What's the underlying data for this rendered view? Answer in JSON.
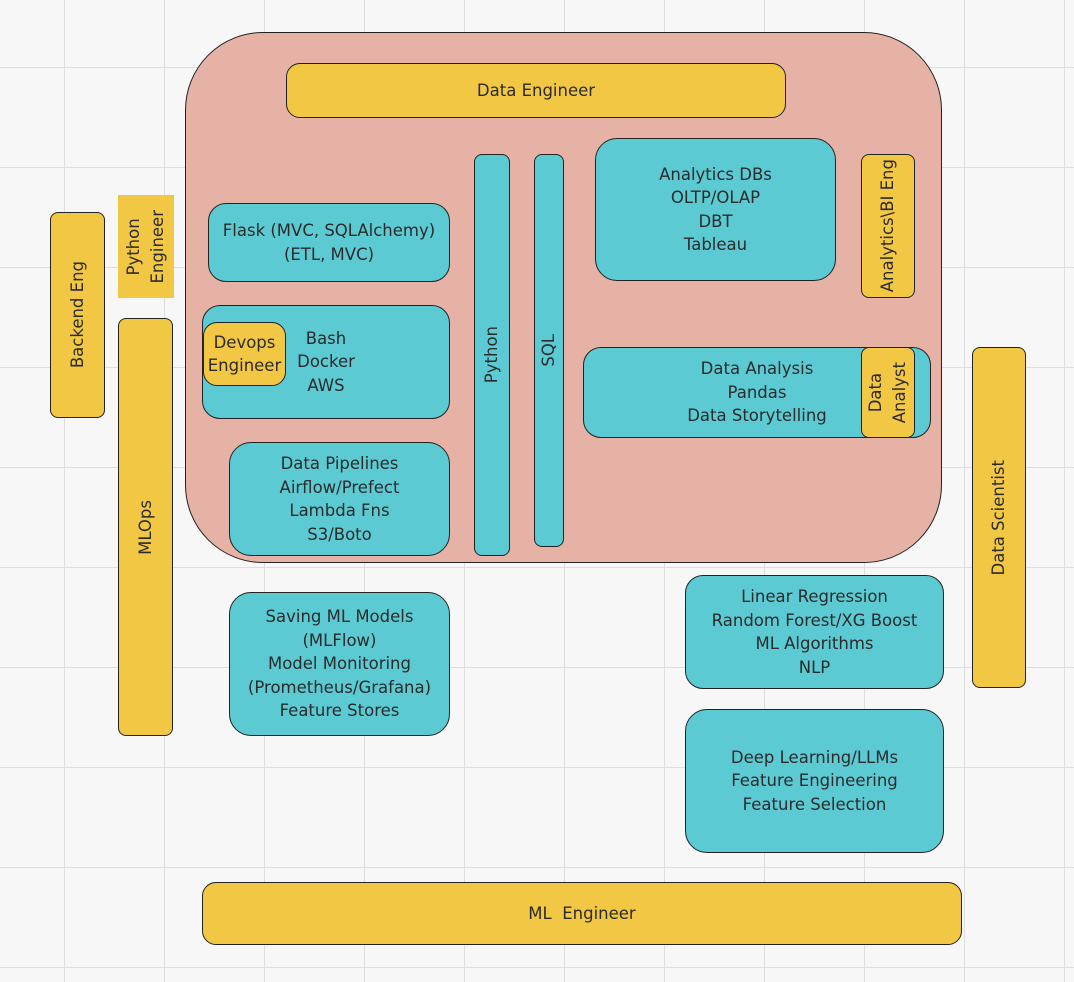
{
  "diagram": {
    "data_engineer": "Data Engineer",
    "python_engineer": [
      "Python",
      "Engineer"
    ],
    "backend_eng": "Backend Eng",
    "mlops": "MLOps",
    "flask": [
      "Flask (MVC, SQLAlchemy)",
      "(ETL, MVC)"
    ],
    "devops_engineer": [
      "Devops",
      "Engineer"
    ],
    "bash_docker_aws": [
      "Bash",
      "Docker",
      "AWS"
    ],
    "data_pipelines": [
      "Data Pipelines",
      "Airflow/Prefect",
      "Lambda Fns",
      "S3/Boto"
    ],
    "python_bar": "Python",
    "sql_bar": "SQL",
    "analytics_dbs": [
      "Analytics DBs",
      "OLTP/OLAP",
      "DBT",
      "Tableau"
    ],
    "analytics_bi_eng": "Analytics\\BI Eng",
    "data_analysis": [
      "Data Analysis",
      "Pandas",
      "Data Storytelling"
    ],
    "data_analyst": [
      "Data",
      "Analyst"
    ],
    "data_scientist": "Data Scientist",
    "saving_ml": [
      "Saving ML Models",
      "(MLFlow)",
      "Model Monitoring",
      "(Prometheus/Grafana)",
      "Feature Stores"
    ],
    "ml_algorithms": [
      "Linear Regression",
      "Random Forest/XG Boost",
      "ML Algorithms",
      "NLP"
    ],
    "deep_learning": [
      "Deep Learning/LLMs",
      "Feature Engineering",
      "Feature Selection"
    ],
    "ml_engineer": "ML  Engineer"
  },
  "colors": {
    "role": "#f2c744",
    "skill": "#5ccad3",
    "region": "#e6b2a5"
  }
}
